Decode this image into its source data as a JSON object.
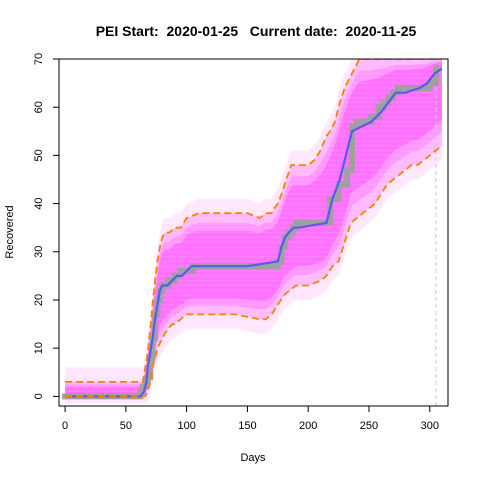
{
  "chart_data": {
    "type": "line",
    "title": "PEI Start:  2020-01-25   Current date:  2020-11-25",
    "xlabel": "Days",
    "ylabel": "Recovered",
    "xlim": [
      -5,
      315
    ],
    "ylim": [
      -2,
      70
    ],
    "xticks": [
      0,
      50,
      100,
      150,
      200,
      250,
      300
    ],
    "yticks": [
      0,
      10,
      20,
      30,
      40,
      50,
      60,
      70
    ],
    "current_day": 305,
    "grid": false,
    "legend": "none",
    "colors": {
      "simulations": "#ff44ff",
      "observed": "#a0a0a0",
      "median": "#5a5af0",
      "bounds": "#ff8000",
      "current_line": "#c8c8c8"
    },
    "series": [
      {
        "role": "observed",
        "x": [
          0,
          60,
          62,
          64,
          66,
          68,
          70,
          72,
          74,
          76,
          78,
          80,
          85,
          90,
          95,
          100,
          105,
          170,
          175,
          178,
          181,
          184,
          187,
          190,
          215,
          218,
          222,
          225,
          228,
          232,
          236,
          240,
          246,
          252,
          258,
          262,
          266,
          270,
          274,
          278,
          296,
          300,
          305
        ],
        "y": [
          0,
          0,
          1,
          2,
          3,
          4,
          8,
          12,
          17,
          20,
          22,
          23,
          24,
          25,
          26,
          26,
          27,
          27,
          28,
          31,
          33,
          34,
          35,
          36,
          36,
          41,
          41,
          44,
          44,
          47,
          56,
          57,
          57,
          58,
          60,
          61,
          62,
          63,
          64,
          64,
          64,
          65,
          68
        ]
      },
      {
        "role": "median",
        "x": [
          0,
          62,
          65,
          67,
          68,
          70,
          72,
          74,
          76,
          78,
          80,
          84,
          88,
          92,
          96,
          100,
          104,
          150,
          175,
          178,
          181,
          184,
          188,
          192,
          215,
          220,
          226,
          230,
          236,
          244,
          252,
          260,
          266,
          272,
          280,
          292,
          298,
          304,
          310
        ],
        "y": [
          0,
          0,
          1,
          3,
          6,
          9,
          12,
          16,
          19,
          22,
          23,
          23,
          24,
          25,
          25,
          26,
          27,
          27,
          28,
          31,
          33,
          34,
          35,
          35,
          36,
          41,
          45,
          49,
          55,
          56,
          57,
          59,
          61,
          63,
          63,
          64,
          65,
          67,
          68
        ]
      },
      {
        "role": "upper",
        "x": [
          0,
          60,
          64,
          66,
          68,
          70,
          72,
          74,
          76,
          78,
          80,
          82,
          86,
          90,
          95,
          100,
          110,
          120,
          130,
          140,
          150,
          160,
          165,
          170,
          172,
          175,
          178,
          182,
          186,
          190,
          200,
          205,
          210,
          215,
          218,
          222,
          226,
          230,
          234,
          238,
          242,
          300,
          310
        ],
        "y": [
          3,
          3,
          3,
          6,
          9,
          14,
          19,
          24,
          28,
          31,
          33,
          34,
          34,
          35,
          35,
          37,
          38,
          38,
          38,
          38,
          38,
          37,
          38,
          38,
          39,
          40,
          42,
          45,
          48,
          48,
          48,
          49,
          51,
          54,
          55,
          57,
          61,
          64,
          66,
          68,
          70,
          70,
          70
        ]
      },
      {
        "role": "lower",
        "x": [
          0,
          66,
          68,
          70,
          72,
          74,
          76,
          78,
          80,
          82,
          85,
          88,
          90,
          95,
          100,
          110,
          120,
          140,
          160,
          165,
          170,
          175,
          180,
          185,
          190,
          200,
          210,
          215,
          220,
          225,
          230,
          235,
          240,
          245,
          250,
          255,
          260,
          265,
          270,
          275,
          280,
          285,
          290,
          295,
          300,
          305,
          310
        ],
        "y": [
          0,
          0,
          1,
          3,
          6,
          8,
          10,
          11,
          12,
          13,
          14,
          15,
          15,
          16,
          17,
          17,
          17,
          17,
          16,
          16,
          17,
          19,
          21,
          22,
          23,
          23,
          24,
          25,
          27,
          28,
          32,
          36,
          37,
          38,
          39,
          40,
          42,
          44,
          45,
          46,
          47,
          48,
          48,
          49,
          50,
          51,
          52
        ]
      }
    ]
  }
}
